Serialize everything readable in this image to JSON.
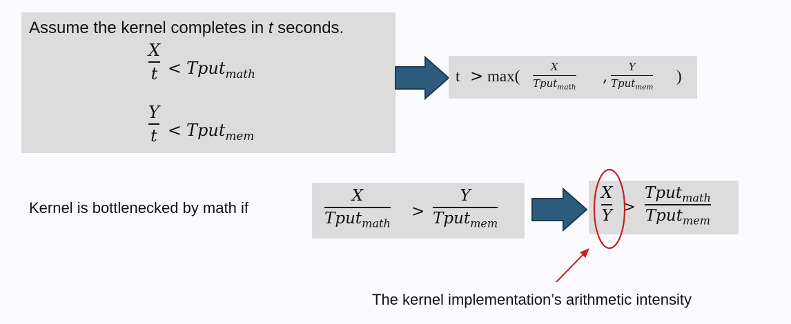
{
  "top_box": {
    "heading_prefix": "Assume the kernel completes in ",
    "heading_var": "t",
    "heading_suffix": " seconds.",
    "ineq1": {
      "num": "X",
      "den": "t",
      "rel": "<",
      "rhs_base": "Tput",
      "rhs_sub": "math"
    },
    "ineq2": {
      "num": "Y",
      "den": "t",
      "rel": "<",
      "rhs_base": "Tput",
      "rhs_sub": "mem"
    }
  },
  "result_box": {
    "lhs": "t",
    "rel": ">",
    "func": "max(",
    "frac1": {
      "num": "X",
      "den_base": "Tput",
      "den_sub": "math"
    },
    "comma": ",",
    "frac2": {
      "num": "Y",
      "den_base": "Tput",
      "den_sub": "mem"
    },
    "close": ")"
  },
  "condition": {
    "label": "Kernel is bottlenecked by math if",
    "frac1": {
      "num": "X",
      "den_base": "Tput",
      "den_sub": "math"
    },
    "rel": ">",
    "frac2": {
      "num": "Y",
      "den_base": "Tput",
      "den_sub": "mem"
    }
  },
  "intensity_box": {
    "frac_left": {
      "num": "X",
      "den": "Y"
    },
    "rel": ">",
    "frac_right": {
      "num_base": "Tput",
      "num_sub": "math",
      "den_base": "Tput",
      "den_sub": "mem"
    }
  },
  "annotation": {
    "text": "The kernel implementation’s arithmetic intensity"
  },
  "colors": {
    "box_fill": "#dcdcdc",
    "arrow_fill": "#2d5b7b",
    "arrow_stroke": "#1c3a52",
    "circle_stroke": "#c8201e",
    "pointer_stroke": "#c8201e"
  }
}
